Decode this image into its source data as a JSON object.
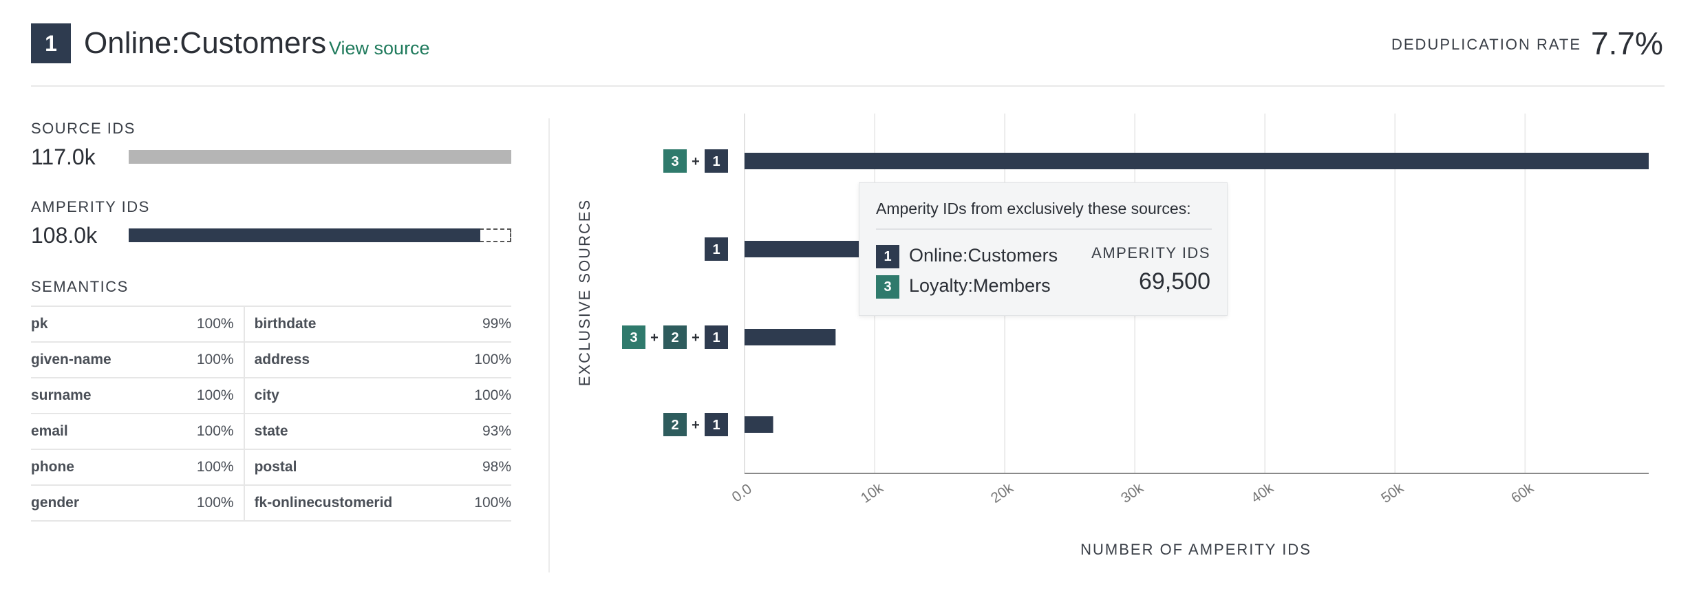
{
  "header": {
    "source_number": "1",
    "title": "Online:Customers",
    "view_source_label": "View source",
    "dedup_label": "DEDUPLICATION RATE",
    "dedup_value": "7.7%"
  },
  "stats": {
    "source_ids": {
      "label": "SOURCE IDS",
      "value": "117.0k",
      "fraction": 1.0
    },
    "amperity_ids": {
      "label": "AMPERITY IDS",
      "value": "108.0k",
      "fraction": 0.923
    }
  },
  "semantics": {
    "label": "SEMANTICS",
    "rows": [
      {
        "left_name": "pk",
        "left_pct": "100%",
        "right_name": "birthdate",
        "right_pct": "99%"
      },
      {
        "left_name": "given-name",
        "left_pct": "100%",
        "right_name": "address",
        "right_pct": "100%"
      },
      {
        "left_name": "surname",
        "left_pct": "100%",
        "right_name": "city",
        "right_pct": "100%"
      },
      {
        "left_name": "email",
        "left_pct": "100%",
        "right_name": "state",
        "right_pct": "93%"
      },
      {
        "left_name": "phone",
        "left_pct": "100%",
        "right_name": "postal",
        "right_pct": "98%"
      },
      {
        "left_name": "gender",
        "left_pct": "100%",
        "right_name": "fk-onlinecustomerid",
        "right_pct": "100%"
      }
    ]
  },
  "colors": {
    "navy": "#2e3b4f",
    "teal": "#2f7a6c",
    "dark_teal": "#2e5c5d",
    "gray_bar": "#b5b5b5",
    "accent_link": "#1f7a5c"
  },
  "chart_data": {
    "type": "bar",
    "orientation": "horizontal",
    "xlabel": "NUMBER OF AMPERITY IDS",
    "ylabel": "EXCLUSIVE SOURCES",
    "xlim": [
      0,
      69500
    ],
    "x_ticks": [
      0,
      10000,
      20000,
      30000,
      40000,
      50000,
      60000
    ],
    "x_tick_labels": [
      "0.0",
      "10k",
      "20k",
      "30k",
      "40k",
      "50k",
      "60k"
    ],
    "grid": true,
    "categories": [
      {
        "sources": [
          {
            "num": "3",
            "color": "#2f7a6c"
          },
          {
            "num": "1",
            "color": "#2e3b4f"
          }
        ],
        "value": 69500
      },
      {
        "sources": [
          {
            "num": "1",
            "color": "#2e3b4f"
          }
        ],
        "value": 9000
      },
      {
        "sources": [
          {
            "num": "3",
            "color": "#2f7a6c"
          },
          {
            "num": "2",
            "color": "#2e5c5d"
          },
          {
            "num": "1",
            "color": "#2e3b4f"
          }
        ],
        "value": 7000
      },
      {
        "sources": [
          {
            "num": "2",
            "color": "#2e5c5d"
          },
          {
            "num": "1",
            "color": "#2e3b4f"
          }
        ],
        "value": 2200
      }
    ],
    "plus_sign": "+"
  },
  "tooltip": {
    "heading": "Amperity IDs from exclusively these sources:",
    "sources": [
      {
        "num": "1",
        "name": "Online:Customers",
        "color": "#2e3b4f"
      },
      {
        "num": "3",
        "name": "Loyalty:Members",
        "color": "#2f7a6c"
      }
    ],
    "amperity_label": "AMPERITY IDS",
    "amperity_value": "69,500"
  }
}
